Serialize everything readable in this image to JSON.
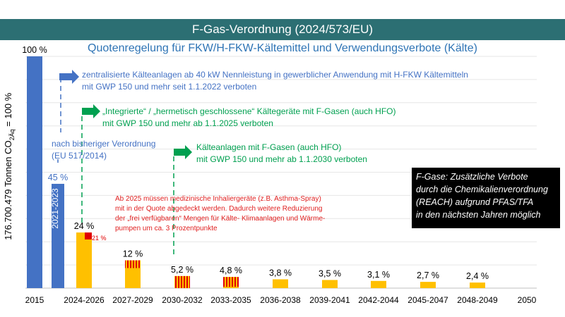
{
  "header": {
    "title": "F-Gas-Verordnung (2024/573/EU)"
  },
  "subtitle": "Quotenregelung für FKW/H-FKW-Kältemittel und Verwendungsverbote (Kälte)",
  "notes": {
    "ban2022_line1": "zentralisierte Kälteanlagen ab 40 kW Nennleistung in gewerblicher Anwendung mit H-FKW Kältemitteln",
    "ban2022_line2": "mit GWP 150 und mehr seit 1.1.2022 verboten",
    "ban2025_line1": "„Integrierte“ / „hermetisch geschlossene“ Kältegeräte mit F-Gasen (auch HFO)",
    "ban2025_line2": "mit GWP 150 und mehr ab 1.1.2025 verboten",
    "previous_line1": "nach bisheriger Verordnung",
    "previous_line2": "(EU 517/2014)",
    "ban2030_line1": "Kälteanlagen mit F-Gasen (auch HFO)",
    "ban2030_line2": "mit GWP 150 und mehr ab 1.1.2030 verboten",
    "medical_line1": "Ab 2025 müssen medizinische Inhaliergeräte (z.B. Asthma-Spray)",
    "medical_line2": "mit in der Quote abgedeckt werden. Dadurch weitere Reduzierung",
    "medical_line3": "der „frei verfügbaren“ Mengen für Kälte- Klimaanlagen und Wärme-",
    "medical_line4": "pumpen um ca. 3 Prozentpunkte"
  },
  "blackbox": {
    "line1": "F-Gase: Zusätzliche Verbote",
    "line2": "durch die Chemikalienverordnung",
    "line3": "(REACH) aufgrund PFAS/TFA",
    "line4": "in den nächsten Jahren möglich"
  },
  "colors": {
    "header": "#2c6f73",
    "blue": "#4472c4",
    "yellow": "#ffc000",
    "red": "#e00000",
    "green": "#00a050"
  },
  "chart_data": {
    "type": "bar",
    "ylabel": "176.700.479 Tonnen CO2Äq = 100 %",
    "categories": [
      "2015",
      "2021-2023",
      "2024-2026",
      "2027-2029",
      "2030-2032",
      "2033-2035",
      "2036-2038",
      "2039-2041",
      "2042-2044",
      "2045-2047",
      "2048-2049",
      "2050"
    ],
    "x_tick_labels": [
      "2015",
      "2024-2026",
      "2027-2029",
      "2030-2032",
      "2033-2035",
      "2036-2038",
      "2039-2041",
      "2042-2044",
      "2045-2047",
      "2048-2049",
      "2050"
    ],
    "bar_inner_label": "2021-2023",
    "series": [
      {
        "values": [
          100,
          45,
          24,
          12,
          5.2,
          4.8,
          3.8,
          3.5,
          3.1,
          2.7,
          2.4,
          0
        ]
      }
    ],
    "value_labels": [
      "100 %",
      "45 %",
      "24 %",
      "12 %",
      "5,2 %",
      "4,8 %",
      "3,8 %",
      "3,5 %",
      "3,1 %",
      "2,7 %",
      "2,4 %",
      ""
    ],
    "medical_share_label": "21 %",
    "medical_share_value": 21,
    "ylim": [
      0,
      100
    ],
    "grid": true
  }
}
